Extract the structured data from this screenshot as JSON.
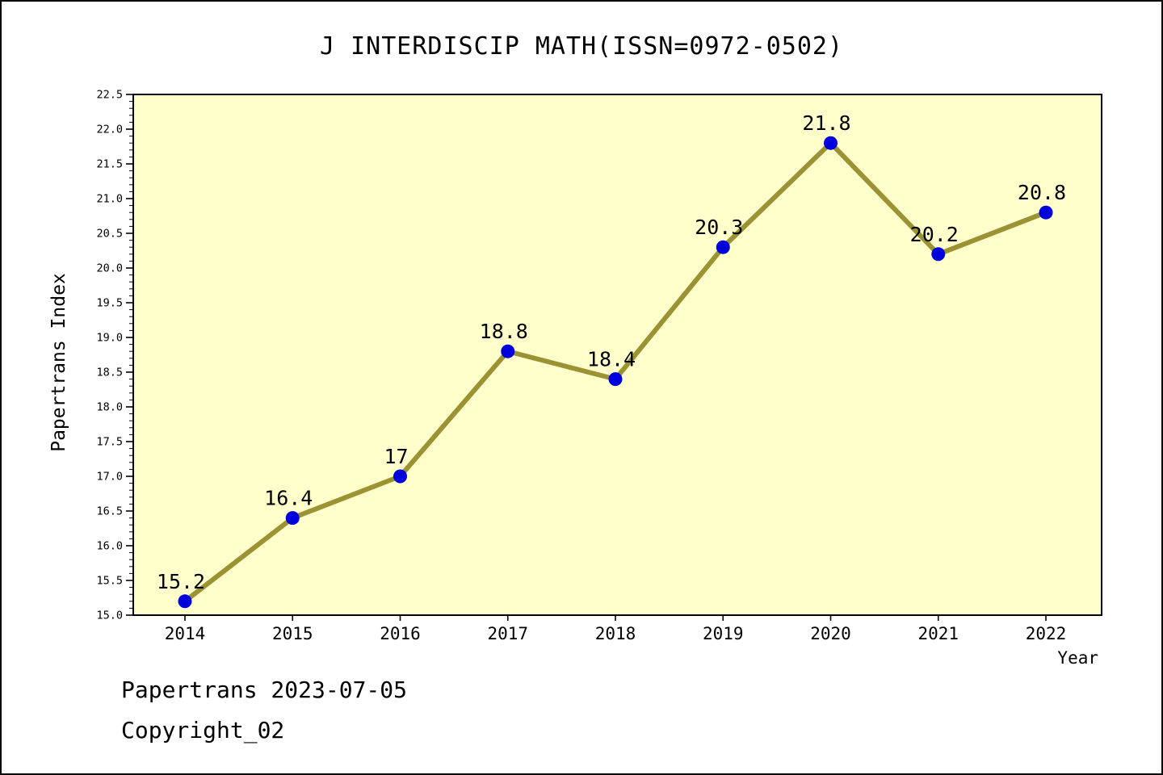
{
  "page": {
    "footer_line1": "Papertrans 2023-07-05",
    "footer_line2": "Copyright_02"
  },
  "chart_data": {
    "type": "line",
    "title": "J INTERDISCIP MATH(ISSN=0972-0502)",
    "xlabel": "Year",
    "ylabel": "Papertrans Index",
    "categories": [
      "2014",
      "2015",
      "2016",
      "2017",
      "2018",
      "2019",
      "2020",
      "2021",
      "2022"
    ],
    "series": [
      {
        "name": "Papertrans Index",
        "values": [
          15.2,
          16.4,
          17,
          18.8,
          18.4,
          20.3,
          21.8,
          20.2,
          20.8
        ],
        "point_labels": [
          "15.2",
          "16.4",
          "17",
          "18.8",
          "18.4",
          "20.3",
          "21.8",
          "20.2",
          "20.8"
        ]
      }
    ],
    "ylim": [
      15.0,
      22.5
    ],
    "ytick_step": 0.5,
    "yminor_step": 0.1,
    "grid": false,
    "legend": "none",
    "colors": {
      "line": "#9a9233",
      "marker": "#0000dd",
      "plot_background": "#ffffcc",
      "axis": "#000000",
      "text": "#000000"
    }
  }
}
